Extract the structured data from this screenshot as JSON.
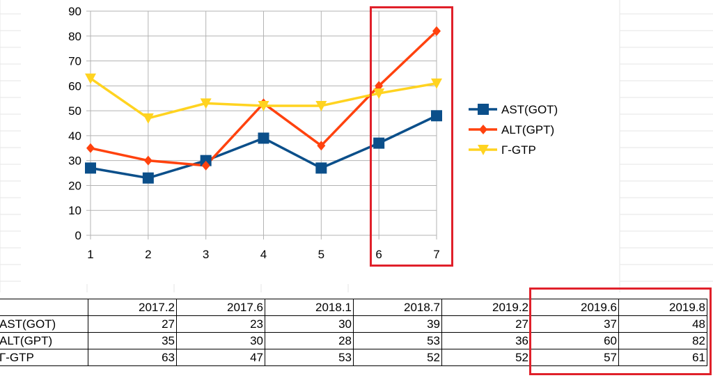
{
  "chart_data": {
    "type": "line",
    "x": [
      "1",
      "2",
      "3",
      "4",
      "5",
      "6",
      "7"
    ],
    "ylim": [
      0,
      90
    ],
    "yticks": [
      0,
      10,
      20,
      30,
      40,
      50,
      60,
      70,
      80,
      90
    ],
    "grid": true,
    "legend_position": "right",
    "series": [
      {
        "name": "AST(GOT)",
        "values": [
          27,
          23,
          30,
          39,
          27,
          37,
          48
        ],
        "color": "#0b4f8a",
        "marker": "square"
      },
      {
        "name": "ALT(GPT)",
        "values": [
          35,
          30,
          28,
          53,
          36,
          60,
          82
        ],
        "color": "#ff420e",
        "marker": "diamond"
      },
      {
        "name": "Г-GTP",
        "values": [
          63,
          47,
          53,
          52,
          52,
          57,
          61
        ],
        "color": "#ffd320",
        "marker": "triangle-down"
      }
    ]
  },
  "table": {
    "header": [
      "",
      "2017.2",
      "2017.6",
      "2018.1",
      "2018.7",
      "2019.2",
      "2019.6",
      "2019.8"
    ],
    "rows": [
      [
        "AST(GOT)",
        "27",
        "23",
        "30",
        "39",
        "27",
        "37",
        "48"
      ],
      [
        "ALT(GPT)",
        "35",
        "30",
        "28",
        "53",
        "36",
        "60",
        "82"
      ],
      [
        "Г-GTP",
        "63",
        "47",
        "53",
        "52",
        "52",
        "57",
        "61"
      ]
    ]
  },
  "highlight_color": "#e0202a"
}
